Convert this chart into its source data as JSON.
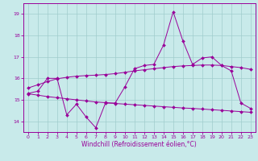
{
  "x": [
    0,
    1,
    2,
    3,
    4,
    5,
    6,
    7,
    8,
    9,
    10,
    11,
    12,
    13,
    14,
    15,
    16,
    17,
    18,
    19,
    20,
    21,
    22,
    23
  ],
  "y_main": [
    15.3,
    15.4,
    16.0,
    16.0,
    14.3,
    14.8,
    14.2,
    13.7,
    14.85,
    14.85,
    15.6,
    16.45,
    16.6,
    16.65,
    17.55,
    19.1,
    17.75,
    16.65,
    16.95,
    17.0,
    16.6,
    16.35,
    14.85,
    14.6
  ],
  "y_upper": [
    15.55,
    15.7,
    15.85,
    15.98,
    16.05,
    16.1,
    16.13,
    16.15,
    16.18,
    16.22,
    16.28,
    16.35,
    16.4,
    16.45,
    16.5,
    16.55,
    16.58,
    16.6,
    16.62,
    16.62,
    16.6,
    16.55,
    16.5,
    16.42
  ],
  "y_lower": [
    15.28,
    15.22,
    15.15,
    15.1,
    15.05,
    15.0,
    14.95,
    14.9,
    14.87,
    14.83,
    14.8,
    14.77,
    14.74,
    14.71,
    14.68,
    14.65,
    14.62,
    14.6,
    14.57,
    14.54,
    14.51,
    14.48,
    14.45,
    14.42
  ],
  "line_color": "#990099",
  "bg_color": "#c8eaea",
  "grid_color": "#a0cccc",
  "ylim": [
    13.5,
    19.5
  ],
  "xlim": [
    -0.5,
    23.5
  ],
  "yticks": [
    14,
    15,
    16,
    17,
    18,
    19
  ],
  "xticks": [
    0,
    1,
    2,
    3,
    4,
    5,
    6,
    7,
    8,
    9,
    10,
    11,
    12,
    13,
    14,
    15,
    16,
    17,
    18,
    19,
    20,
    21,
    22,
    23
  ],
  "xlabel": "Windchill (Refroidissement éolien,°C)"
}
